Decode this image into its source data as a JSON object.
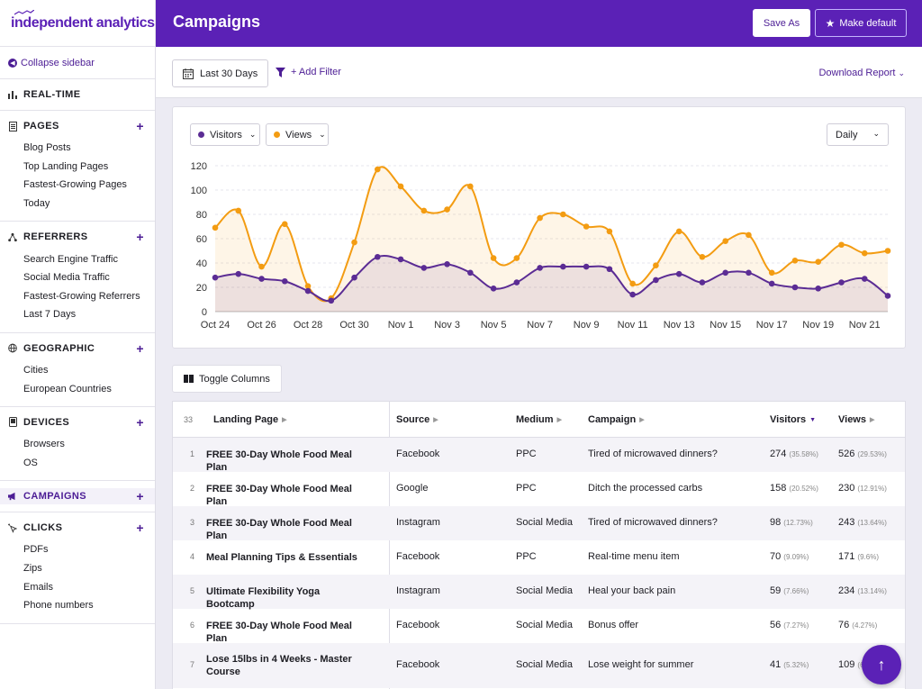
{
  "brand": {
    "name": "independent analytics"
  },
  "sidebar": {
    "collapse_label": "Collapse sidebar",
    "realtime": "REAL-TIME",
    "sections": [
      {
        "title": "PAGES",
        "icon": "document-icon",
        "items": [
          "Blog Posts",
          "Top Landing Pages",
          "Fastest-Growing Pages",
          "Today"
        ]
      },
      {
        "title": "REFERRERS",
        "icon": "network-icon",
        "items": [
          "Search Engine Traffic",
          "Social Media Traffic",
          "Fastest-Growing Referrers",
          "Last 7 Days"
        ]
      },
      {
        "title": "GEOGRAPHIC",
        "icon": "globe-icon",
        "items": [
          "Cities",
          "European Countries"
        ]
      },
      {
        "title": "DEVICES",
        "icon": "device-icon",
        "items": [
          "Browsers",
          "OS"
        ]
      },
      {
        "title": "CAMPAIGNS",
        "icon": "megaphone-icon",
        "items": []
      },
      {
        "title": "CLICKS",
        "icon": "cursor-icon",
        "items": [
          "PDFs",
          "Zips",
          "Emails",
          "Phone numbers"
        ]
      }
    ]
  },
  "header": {
    "title": "Campaigns",
    "save_as": "Save As",
    "make_default": "Make default"
  },
  "toolbar": {
    "date_range": "Last 30 Days",
    "add_filter": "+ Add Filter",
    "download": "Download Report"
  },
  "chart_controls": {
    "metric1": "Visitors",
    "metric2": "Views",
    "interval": "Daily"
  },
  "colors": {
    "accent": "#5b21b6",
    "visitors": "#5b2c94",
    "views": "#f39c12"
  },
  "chart_data": {
    "type": "line",
    "x": [
      "Oct 24",
      "Oct 25",
      "Oct 26",
      "Oct 27",
      "Oct 28",
      "Oct 29",
      "Oct 30",
      "Oct 31",
      "Nov 1",
      "Nov 2",
      "Nov 3",
      "Nov 4",
      "Nov 5",
      "Nov 6",
      "Nov 7",
      "Nov 8",
      "Nov 9",
      "Nov 10",
      "Nov 11",
      "Nov 12",
      "Nov 13",
      "Nov 14",
      "Nov 15",
      "Nov 16",
      "Nov 17",
      "Nov 18",
      "Nov 19",
      "Nov 20",
      "Nov 21",
      "Nov 22"
    ],
    "x_ticks": [
      "Oct 24",
      "Oct 26",
      "Oct 28",
      "Oct 30",
      "Nov 1",
      "Nov 3",
      "Nov 5",
      "Nov 7",
      "Nov 9",
      "Nov 11",
      "Nov 13",
      "Nov 15",
      "Nov 17",
      "Nov 19",
      "Nov 21"
    ],
    "ylim": [
      0,
      120
    ],
    "y_ticks": [
      0,
      20,
      40,
      60,
      80,
      100,
      120
    ],
    "grid": true,
    "series": [
      {
        "name": "Visitors",
        "values": [
          28,
          31,
          27,
          25,
          17,
          9,
          28,
          45,
          43,
          36,
          39,
          32,
          19,
          24,
          36,
          37,
          37,
          35,
          14,
          26,
          31,
          24,
          32,
          32,
          23,
          20,
          19,
          24,
          27,
          13
        ]
      },
      {
        "name": "Views",
        "values": [
          69,
          83,
          37,
          72,
          21,
          11,
          57,
          117,
          103,
          83,
          84,
          103,
          44,
          44,
          77,
          80,
          70,
          66,
          23,
          38,
          66,
          45,
          58,
          63,
          32,
          42,
          41,
          55,
          48,
          50
        ]
      }
    ]
  },
  "table": {
    "count": "33",
    "toggle_columns": "Toggle Columns",
    "columns": [
      "Landing Page",
      "Source",
      "Medium",
      "Campaign",
      "Visitors",
      "Views"
    ],
    "rows": [
      {
        "n": "1",
        "page": "FREE 30-Day Whole Food Meal Plan",
        "source": "Facebook",
        "medium": "PPC",
        "campaign": "Tired of microwaved dinners?",
        "visitors": "274",
        "visitors_pct": "(35.58%)",
        "views": "526",
        "views_pct": "(29.53%)"
      },
      {
        "n": "2",
        "page": "FREE 30-Day Whole Food Meal Plan",
        "source": "Google",
        "medium": "PPC",
        "campaign": "Ditch the processed carbs",
        "visitors": "158",
        "visitors_pct": "(20.52%)",
        "views": "230",
        "views_pct": "(12.91%)"
      },
      {
        "n": "3",
        "page": "FREE 30-Day Whole Food Meal Plan",
        "source": "Instagram",
        "medium": "Social Media",
        "campaign": "Tired of microwaved dinners?",
        "visitors": "98",
        "visitors_pct": "(12.73%)",
        "views": "243",
        "views_pct": "(13.64%)"
      },
      {
        "n": "4",
        "page": "Meal Planning Tips & Essentials",
        "source": "Facebook",
        "medium": "PPC",
        "campaign": "Real-time menu item",
        "visitors": "70",
        "visitors_pct": "(9.09%)",
        "views": "171",
        "views_pct": "(9.6%)"
      },
      {
        "n": "5",
        "page": "Ultimate Flexibility Yoga Bootcamp",
        "source": "Instagram",
        "medium": "Social Media",
        "campaign": "Heal your back pain",
        "visitors": "59",
        "visitors_pct": "(7.66%)",
        "views": "234",
        "views_pct": "(13.14%)"
      },
      {
        "n": "6",
        "page": "FREE 30-Day Whole Food Meal Plan",
        "source": "Facebook",
        "medium": "Social Media",
        "campaign": "Bonus offer",
        "visitors": "56",
        "visitors_pct": "(7.27%)",
        "views": "76",
        "views_pct": "(4.27%)"
      },
      {
        "n": "7",
        "page": "Lose 15lbs in 4 Weeks - Master Course",
        "source": "Facebook",
        "medium": "Social Media",
        "campaign": "Lose weight for summer",
        "visitors": "41",
        "visitors_pct": "(5.32%)",
        "views": "109",
        "views_pct": "(6.12%)"
      }
    ]
  }
}
